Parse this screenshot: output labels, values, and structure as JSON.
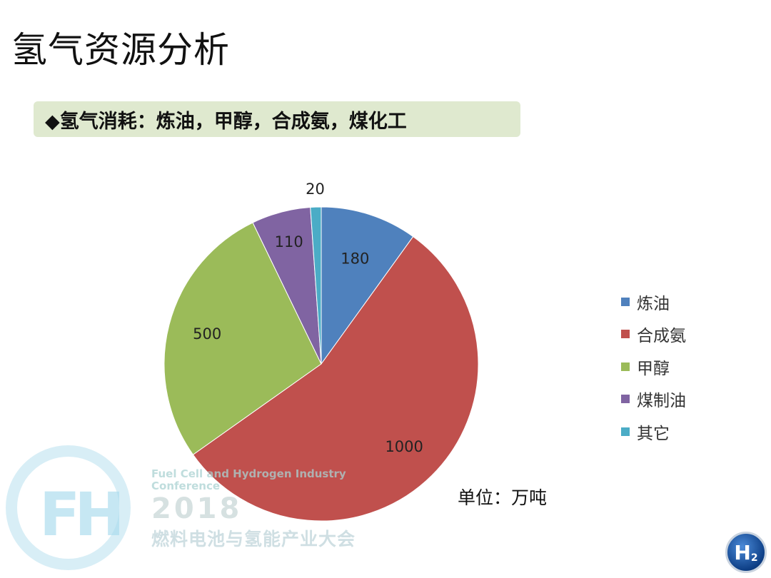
{
  "page_title": "氢气资源分析",
  "subtitle": "◆氢气消耗：炼油，甲醇，合成氨，煤化工",
  "unit_label": "单位：万吨",
  "chart_data": {
    "type": "pie",
    "start_angle_deg": 0,
    "direction": "clockwise",
    "slices": [
      {
        "name": "炼油",
        "value": 180,
        "color": "#4f81bd"
      },
      {
        "name": "合成氨",
        "value": 1000,
        "color": "#c0504d"
      },
      {
        "name": "甲醇",
        "value": 500,
        "color": "#9bbb59"
      },
      {
        "name": "煤制油",
        "value": 110,
        "color": "#8064a2"
      },
      {
        "name": "其它",
        "value": 20,
        "color": "#4bacc6"
      }
    ],
    "legend_position": "right"
  },
  "watermark": {
    "letters": "FH",
    "en": "Fuel Cell and Hydrogen Industry\nConference",
    "year": "2018",
    "cn": "燃料电池与氢能产业大会"
  },
  "badge": {
    "main": "H",
    "sub": "2"
  }
}
